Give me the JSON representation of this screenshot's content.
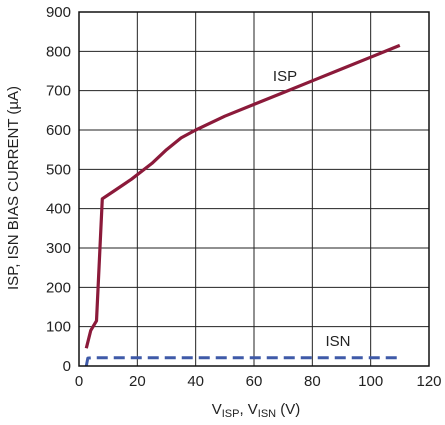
{
  "chart_data": {
    "type": "line",
    "xlim": [
      0,
      120
    ],
    "ylim": [
      0,
      900
    ],
    "x_ticks": [
      "0",
      "20",
      "40",
      "60",
      "80",
      "100",
      "120"
    ],
    "y_ticks": [
      "0",
      "100",
      "200",
      "300",
      "400",
      "500",
      "600",
      "700",
      "800",
      "900"
    ],
    "x_ticks_values": [
      0,
      20,
      40,
      60,
      80,
      100,
      120
    ],
    "y_ticks_values": [
      0,
      100,
      200,
      300,
      400,
      500,
      600,
      700,
      800,
      900
    ],
    "xlabel": {
      "main": "V",
      "sub1": "ISP",
      "sep": ", V",
      "sub2": "ISN",
      "unit": " (V)"
    },
    "ylabel": "ISP, ISN BIAS CURRENT (µA)",
    "grid": true,
    "series": [
      {
        "name": "ISP",
        "color": "#8b1a3a",
        "dash": "solid",
        "x": [
          2.5,
          4,
          6,
          8,
          12,
          18,
          25,
          30,
          35,
          40,
          50,
          60,
          70,
          80,
          90,
          100,
          110
        ],
        "y": [
          45,
          90,
          115,
          425,
          445,
          475,
          515,
          550,
          580,
          600,
          635,
          665,
          695,
          725,
          755,
          785,
          815
        ]
      },
      {
        "name": "ISN",
        "color": "#3f5aa8",
        "dash": "dashed",
        "x": [
          2.5,
          3,
          5,
          10,
          20,
          40,
          60,
          80,
          100,
          110
        ],
        "y": [
          0,
          20,
          21,
          21,
          21,
          21,
          21,
          21,
          21,
          21
        ]
      }
    ]
  }
}
